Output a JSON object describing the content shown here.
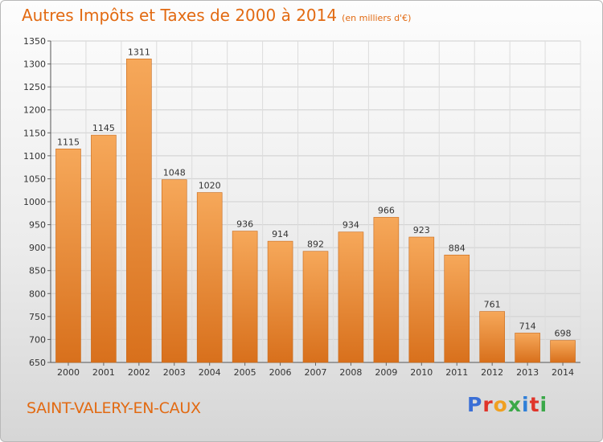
{
  "header": {
    "title": "Autres Impôts et Taxes de 2000 à 2014",
    "subtitle": "(en milliers d'€)"
  },
  "footer": {
    "commune": "SAINT-VALERY-EN-CAUX",
    "brand": "Proxiti"
  },
  "colors": {
    "accent": "#e26a12",
    "bar_light": "#f6a85a",
    "bar_dark": "#d8701c",
    "brand_letters": [
      "#3b6fd6",
      "#e0342a",
      "#f0a020",
      "#3aa848",
      "#2f7fd8",
      "#e0342a",
      "#3aa848"
    ]
  },
  "chart_data": {
    "type": "bar",
    "title": "Autres Impôts et Taxes de 2000 à 2014",
    "subtitle": "(en milliers d'€)",
    "xlabel": "",
    "ylabel": "",
    "categories": [
      "2000",
      "2001",
      "2002",
      "2003",
      "2004",
      "2005",
      "2006",
      "2007",
      "2008",
      "2009",
      "2010",
      "2011",
      "2012",
      "2013",
      "2014"
    ],
    "values": [
      1115,
      1145,
      1311,
      1048,
      1020,
      936,
      914,
      892,
      934,
      966,
      923,
      884,
      761,
      714,
      698
    ],
    "ylim": [
      650,
      1350
    ],
    "yticks": [
      650,
      700,
      750,
      800,
      850,
      900,
      950,
      1000,
      1050,
      1100,
      1150,
      1200,
      1250,
      1300,
      1350
    ],
    "grid": true,
    "legend": "none"
  }
}
